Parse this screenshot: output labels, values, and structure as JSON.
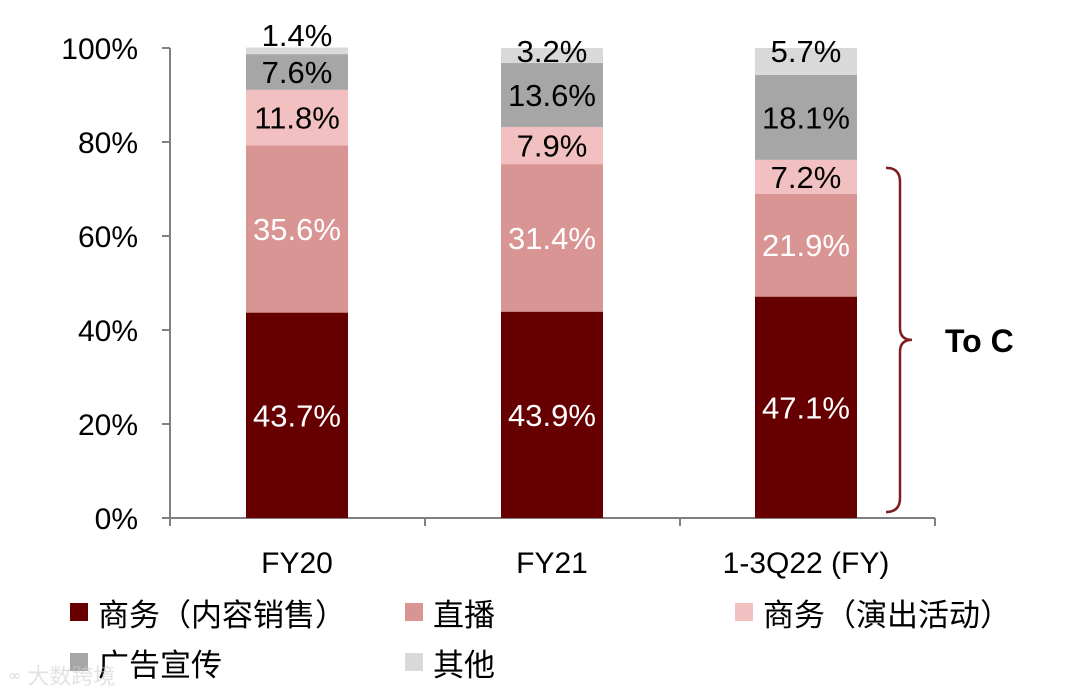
{
  "chart_data": {
    "type": "bar",
    "stacked": true,
    "categories": [
      "FY20",
      "FY21",
      "1-3Q22 (FY)"
    ],
    "series": [
      {
        "name": "商务（内容销售）",
        "color": "#660000",
        "label_color": "#ffffff",
        "values": [
          43.7,
          43.9,
          47.1
        ],
        "labels": [
          "43.7%",
          "43.9%",
          "47.1%"
        ]
      },
      {
        "name": "直播",
        "color": "#d99594",
        "label_color": "#ffffff",
        "values": [
          35.6,
          31.4,
          21.9
        ],
        "labels": [
          "35.6%",
          "31.4%",
          "21.9%"
        ]
      },
      {
        "name": "商务（演出活动）",
        "color": "#f2c0c0",
        "label_color": "#000000",
        "values": [
          11.8,
          7.9,
          7.2
        ],
        "labels": [
          "11.8%",
          "7.9%",
          "7.2%"
        ]
      },
      {
        "name": "广告宣传",
        "color": "#a6a6a6",
        "label_color": "#000000",
        "values": [
          7.6,
          13.6,
          18.1
        ],
        "labels": [
          "7.6%",
          "13.6%",
          "18.1%"
        ]
      },
      {
        "name": "其他",
        "color": "#d9d9d9",
        "label_color": "#000000",
        "values": [
          1.4,
          3.2,
          5.7
        ],
        "labels": [
          "1.4%",
          "3.2%",
          "5.7%"
        ]
      }
    ],
    "ylim": [
      0,
      100
    ],
    "yticks": [
      "0%",
      "20%",
      "40%",
      "60%",
      "80%",
      "100%"
    ],
    "grid": false,
    "legend_position": "bottom",
    "annotation": {
      "text": "To C",
      "bracket_color": "#7f1f1f",
      "spans_series": [
        "商务（内容销售）",
        "直播",
        "商务（演出活动）"
      ],
      "category": "1-3Q22 (FY)"
    }
  },
  "watermark": {
    "icon": "infinity-icon",
    "text": "大数跨境"
  }
}
